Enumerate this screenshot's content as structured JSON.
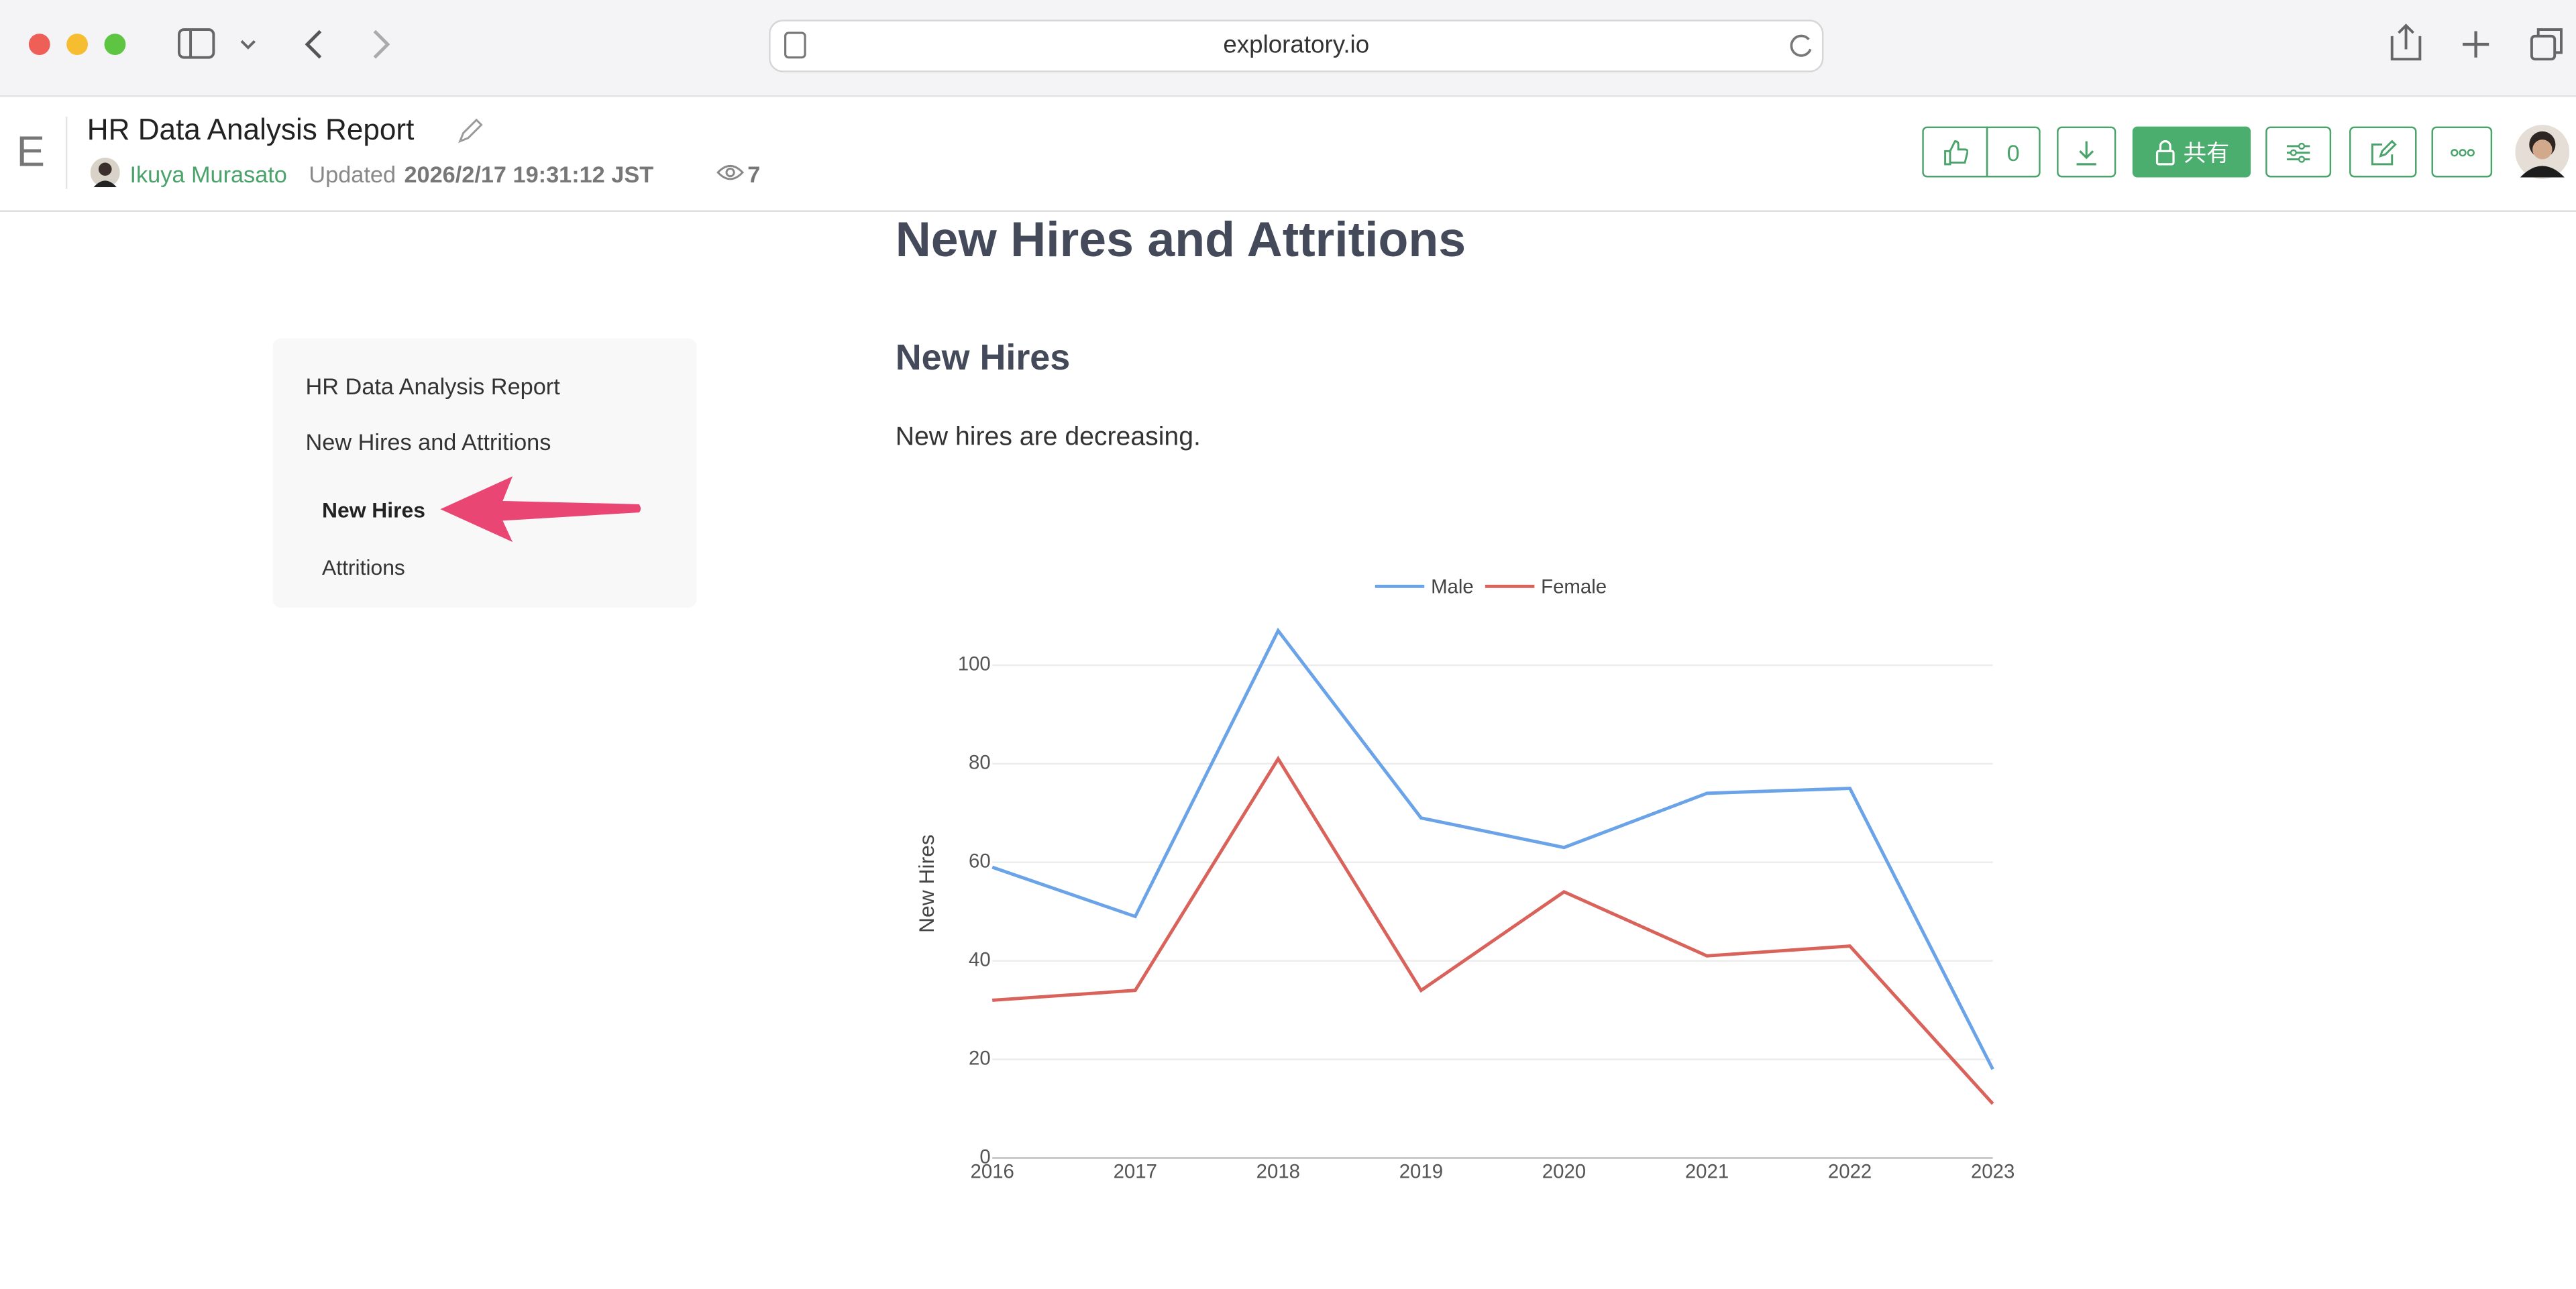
{
  "browser": {
    "url": "exploratory.io"
  },
  "header": {
    "logo": "E",
    "title": "HR Data Analysis Report",
    "author": "Ikuya Murasato",
    "updated_label": "Updated",
    "updated": "2026/2/17 19:31:12 JST",
    "views": 7,
    "likes": 0,
    "share": "共有"
  },
  "toc": {
    "items": [
      "HR Data Analysis Report",
      "New Hires and Attritions",
      "New Hires",
      "Attritions"
    ]
  },
  "content": {
    "heading": "New Hires and Attritions",
    "subheading": "New Hires",
    "text": "New hires are decreasing."
  },
  "chart_data": {
    "type": "line",
    "y_label": "New Hires",
    "categories": [
      "2016",
      "2017",
      "2018",
      "2019",
      "2020",
      "2021",
      "2022",
      "2023"
    ],
    "series": [
      {
        "name": "Male",
        "color": "#6aa3e8",
        "values": [
          59,
          49,
          107,
          69,
          63,
          74,
          75,
          18
        ]
      },
      {
        "name": "Female",
        "color": "#d9625b",
        "values": [
          32,
          34,
          81,
          34,
          54,
          41,
          43,
          11
        ]
      }
    ],
    "ylim": [
      0,
      110
    ],
    "yticks": [
      0,
      20,
      40,
      60,
      80,
      100
    ],
    "grid": true
  }
}
